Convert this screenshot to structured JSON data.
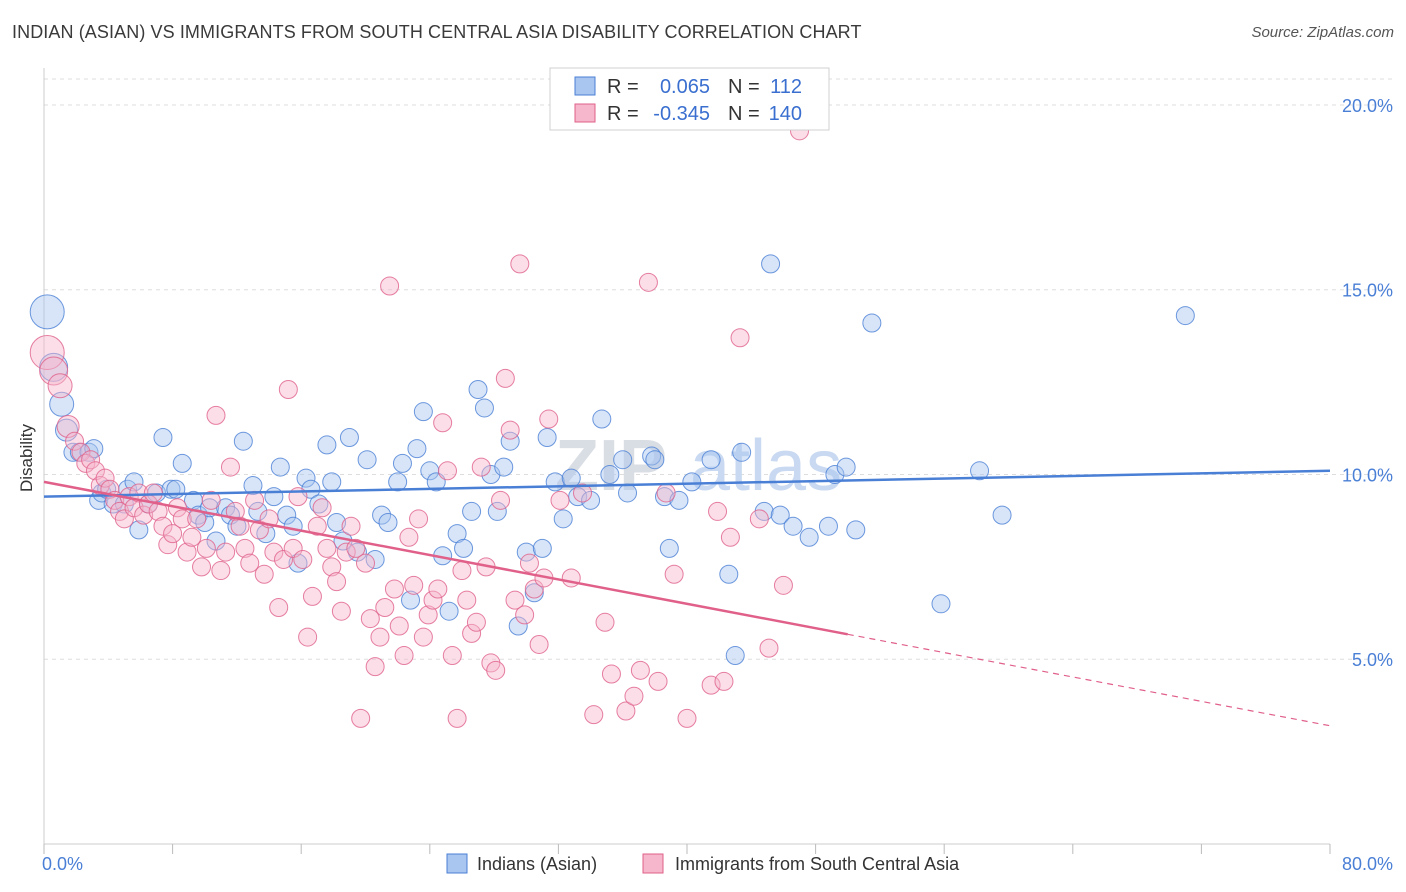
{
  "title": "INDIAN (ASIAN) VS IMMIGRANTS FROM SOUTH CENTRAL ASIA DISABILITY CORRELATION CHART",
  "source": "Source: ZipAtlas.com",
  "watermark": {
    "zip": "ZIP",
    "atlas": "atlas"
  },
  "colors": {
    "blue": "#4a7fd6",
    "blue_fill": "#a9c6f0",
    "pink": "#e0608a",
    "pink_fill": "#f6b6cb",
    "grid": "#dddddd"
  },
  "chart_data": {
    "type": "scatter",
    "title": "INDIAN (ASIAN) VS IMMIGRANTS FROM SOUTH CENTRAL ASIA DISABILITY CORRELATION CHART",
    "xlabel": "",
    "ylabel": "Disability",
    "xlim": [
      0,
      80
    ],
    "ylim": [
      0,
      21
    ],
    "x_tick_labels": [
      {
        "value": 0,
        "label": "0.0%"
      },
      {
        "value": 80,
        "label": "80.0%"
      }
    ],
    "y_tick_labels": [
      {
        "value": 5,
        "label": "5.0%"
      },
      {
        "value": 10,
        "label": "10.0%"
      },
      {
        "value": 15,
        "label": "15.0%"
      },
      {
        "value": 20,
        "label": "20.0%"
      }
    ],
    "legend_top": [
      {
        "r_label": "R =",
        "r": "0.065",
        "n_label": "N =",
        "n": "112"
      },
      {
        "r_label": "R =",
        "r": "-0.345",
        "n_label": "N =",
        "n": "140"
      }
    ],
    "series": [
      {
        "name": "Indians (Asian)",
        "trend": {
          "x0": 0,
          "y0": 9.4,
          "x1": 80,
          "y1": 10.1,
          "solid_to": 80
        },
        "points": [
          [
            0.2,
            14.4
          ],
          [
            0.6,
            12.9
          ],
          [
            1.1,
            11.9
          ],
          [
            1.4,
            11.2
          ],
          [
            1.8,
            10.6
          ],
          [
            2.2,
            10.6
          ],
          [
            2.8,
            10.6
          ],
          [
            3.1,
            10.7
          ],
          [
            3.4,
            9.3
          ],
          [
            3.6,
            9.5
          ],
          [
            3.9,
            9.6
          ],
          [
            4.3,
            9.2
          ],
          [
            5.0,
            9.2
          ],
          [
            5.2,
            9.6
          ],
          [
            5.6,
            9.8
          ],
          [
            5.9,
            8.5
          ],
          [
            6.5,
            9.2
          ],
          [
            7.0,
            9.5
          ],
          [
            7.4,
            11.0
          ],
          [
            7.9,
            9.6
          ],
          [
            8.2,
            9.6
          ],
          [
            8.6,
            10.3
          ],
          [
            9.3,
            9.3
          ],
          [
            9.6,
            8.9
          ],
          [
            10.0,
            8.7
          ],
          [
            10.3,
            9.1
          ],
          [
            10.7,
            8.2
          ],
          [
            11.3,
            9.1
          ],
          [
            11.6,
            8.9
          ],
          [
            12.0,
            8.6
          ],
          [
            12.4,
            10.9
          ],
          [
            13.0,
            9.7
          ],
          [
            13.3,
            9.0
          ],
          [
            13.8,
            8.4
          ],
          [
            14.3,
            9.4
          ],
          [
            14.7,
            10.2
          ],
          [
            15.1,
            8.9
          ],
          [
            15.5,
            8.6
          ],
          [
            15.8,
            7.6
          ],
          [
            16.3,
            9.9
          ],
          [
            16.6,
            9.6
          ],
          [
            17.1,
            9.2
          ],
          [
            17.6,
            10.8
          ],
          [
            17.9,
            9.8
          ],
          [
            18.2,
            8.7
          ],
          [
            18.6,
            8.2
          ],
          [
            19.0,
            11.0
          ],
          [
            19.5,
            7.9
          ],
          [
            20.1,
            10.4
          ],
          [
            20.6,
            7.7
          ],
          [
            21.0,
            8.9
          ],
          [
            21.4,
            8.7
          ],
          [
            22.0,
            9.8
          ],
          [
            22.3,
            10.3
          ],
          [
            22.8,
            6.6
          ],
          [
            23.2,
            10.7
          ],
          [
            23.6,
            11.7
          ],
          [
            24.0,
            10.1
          ],
          [
            24.4,
            9.8
          ],
          [
            24.8,
            7.8
          ],
          [
            25.2,
            6.3
          ],
          [
            25.7,
            8.4
          ],
          [
            26.1,
            8.0
          ],
          [
            26.6,
            9.0
          ],
          [
            27.0,
            12.3
          ],
          [
            27.4,
            11.8
          ],
          [
            27.8,
            10.0
          ],
          [
            28.2,
            9.0
          ],
          [
            28.6,
            10.2
          ],
          [
            29.0,
            10.9
          ],
          [
            29.5,
            5.9
          ],
          [
            30.0,
            7.9
          ],
          [
            30.5,
            6.8
          ],
          [
            31.0,
            8.0
          ],
          [
            31.3,
            11.0
          ],
          [
            31.8,
            9.8
          ],
          [
            32.3,
            8.8
          ],
          [
            32.8,
            9.9
          ],
          [
            33.2,
            9.4
          ],
          [
            34.0,
            9.3
          ],
          [
            34.7,
            11.5
          ],
          [
            35.2,
            10.0
          ],
          [
            36.0,
            10.4
          ],
          [
            36.3,
            9.5
          ],
          [
            37.8,
            10.5
          ],
          [
            38.0,
            10.4
          ],
          [
            38.6,
            9.4
          ],
          [
            38.9,
            8.0
          ],
          [
            39.5,
            9.3
          ],
          [
            40.3,
            9.8
          ],
          [
            41.5,
            10.4
          ],
          [
            42.6,
            7.3
          ],
          [
            43.0,
            5.1
          ],
          [
            43.4,
            10.6
          ],
          [
            44.8,
            9.0
          ],
          [
            45.2,
            15.7
          ],
          [
            45.8,
            8.9
          ],
          [
            46.6,
            8.6
          ],
          [
            47.6,
            8.3
          ],
          [
            48.8,
            8.6
          ],
          [
            49.2,
            10.0
          ],
          [
            49.9,
            10.2
          ],
          [
            50.5,
            8.5
          ],
          [
            51.5,
            14.1
          ],
          [
            55.8,
            6.5
          ],
          [
            58.2,
            10.1
          ],
          [
            59.6,
            8.9
          ],
          [
            71.0,
            14.3
          ]
        ]
      },
      {
        "name": "Immigrants from South Central Asia",
        "trend": {
          "x0": 0,
          "y0": 9.8,
          "x1": 80,
          "y1": 3.2,
          "solid_to": 50
        },
        "points": [
          [
            0.2,
            13.3
          ],
          [
            0.6,
            12.8
          ],
          [
            1.0,
            12.4
          ],
          [
            1.5,
            11.3
          ],
          [
            1.9,
            10.9
          ],
          [
            2.3,
            10.6
          ],
          [
            2.6,
            10.3
          ],
          [
            2.9,
            10.4
          ],
          [
            3.2,
            10.1
          ],
          [
            3.5,
            9.7
          ],
          [
            3.8,
            9.9
          ],
          [
            4.1,
            9.6
          ],
          [
            4.4,
            9.3
          ],
          [
            4.7,
            9.0
          ],
          [
            5.0,
            8.8
          ],
          [
            5.3,
            9.4
          ],
          [
            5.6,
            9.1
          ],
          [
            5.9,
            9.5
          ],
          [
            6.2,
            8.9
          ],
          [
            6.5,
            9.2
          ],
          [
            6.8,
            9.5
          ],
          [
            7.1,
            9.0
          ],
          [
            7.4,
            8.6
          ],
          [
            7.7,
            8.1
          ],
          [
            8.0,
            8.4
          ],
          [
            8.3,
            9.1
          ],
          [
            8.6,
            8.8
          ],
          [
            8.9,
            7.9
          ],
          [
            9.2,
            8.3
          ],
          [
            9.5,
            8.8
          ],
          [
            9.8,
            7.5
          ],
          [
            10.1,
            8.0
          ],
          [
            10.4,
            9.3
          ],
          [
            10.7,
            11.6
          ],
          [
            11.0,
            7.4
          ],
          [
            11.3,
            7.9
          ],
          [
            11.6,
            10.2
          ],
          [
            11.9,
            9.0
          ],
          [
            12.2,
            8.6
          ],
          [
            12.5,
            8.0
          ],
          [
            12.8,
            7.6
          ],
          [
            13.1,
            9.3
          ],
          [
            13.4,
            8.5
          ],
          [
            13.7,
            7.3
          ],
          [
            14.0,
            8.8
          ],
          [
            14.3,
            7.9
          ],
          [
            14.6,
            6.4
          ],
          [
            14.9,
            7.7
          ],
          [
            15.2,
            12.3
          ],
          [
            15.5,
            8.0
          ],
          [
            15.8,
            9.4
          ],
          [
            16.1,
            7.7
          ],
          [
            16.4,
            5.6
          ],
          [
            16.7,
            6.7
          ],
          [
            17.0,
            8.6
          ],
          [
            17.3,
            9.1
          ],
          [
            17.6,
            8.0
          ],
          [
            17.9,
            7.5
          ],
          [
            18.2,
            7.1
          ],
          [
            18.5,
            6.3
          ],
          [
            18.8,
            7.9
          ],
          [
            19.1,
            8.6
          ],
          [
            19.4,
            8.0
          ],
          [
            19.7,
            3.4
          ],
          [
            20.0,
            7.6
          ],
          [
            20.3,
            6.1
          ],
          [
            20.6,
            4.8
          ],
          [
            20.9,
            5.6
          ],
          [
            21.2,
            6.4
          ],
          [
            21.5,
            15.1
          ],
          [
            21.8,
            6.9
          ],
          [
            22.1,
            5.9
          ],
          [
            22.4,
            5.1
          ],
          [
            22.7,
            8.3
          ],
          [
            23.0,
            7.0
          ],
          [
            23.3,
            8.8
          ],
          [
            23.6,
            5.6
          ],
          [
            23.9,
            6.2
          ],
          [
            24.2,
            6.6
          ],
          [
            24.5,
            6.9
          ],
          [
            24.8,
            11.4
          ],
          [
            25.1,
            10.1
          ],
          [
            25.4,
            5.1
          ],
          [
            25.7,
            3.4
          ],
          [
            26.0,
            7.4
          ],
          [
            26.3,
            6.6
          ],
          [
            26.6,
            5.7
          ],
          [
            26.9,
            6.0
          ],
          [
            27.2,
            10.2
          ],
          [
            27.5,
            7.5
          ],
          [
            27.8,
            4.9
          ],
          [
            28.1,
            4.7
          ],
          [
            28.4,
            9.3
          ],
          [
            28.7,
            12.6
          ],
          [
            29.0,
            11.2
          ],
          [
            29.3,
            6.6
          ],
          [
            29.6,
            15.7
          ],
          [
            29.9,
            6.2
          ],
          [
            30.2,
            7.6
          ],
          [
            30.5,
            6.9
          ],
          [
            30.8,
            5.4
          ],
          [
            31.1,
            7.2
          ],
          [
            31.4,
            11.5
          ],
          [
            32.1,
            9.3
          ],
          [
            32.8,
            7.2
          ],
          [
            33.5,
            9.5
          ],
          [
            34.2,
            3.5
          ],
          [
            34.9,
            6.0
          ],
          [
            35.3,
            4.6
          ],
          [
            36.2,
            3.6
          ],
          [
            36.7,
            4.0
          ],
          [
            37.1,
            4.7
          ],
          [
            37.6,
            15.2
          ],
          [
            38.2,
            4.4
          ],
          [
            38.7,
            9.5
          ],
          [
            39.2,
            7.3
          ],
          [
            40.0,
            3.4
          ],
          [
            41.5,
            4.3
          ],
          [
            41.9,
            9.0
          ],
          [
            42.3,
            4.4
          ],
          [
            42.7,
            8.3
          ],
          [
            43.3,
            13.7
          ],
          [
            44.5,
            8.8
          ],
          [
            45.1,
            5.3
          ],
          [
            46.0,
            7.0
          ],
          [
            47.0,
            19.3
          ]
        ]
      }
    ]
  },
  "bottom_legend": [
    {
      "label": "Indians (Asian)"
    },
    {
      "label": "Immigrants from South Central Asia"
    }
  ]
}
